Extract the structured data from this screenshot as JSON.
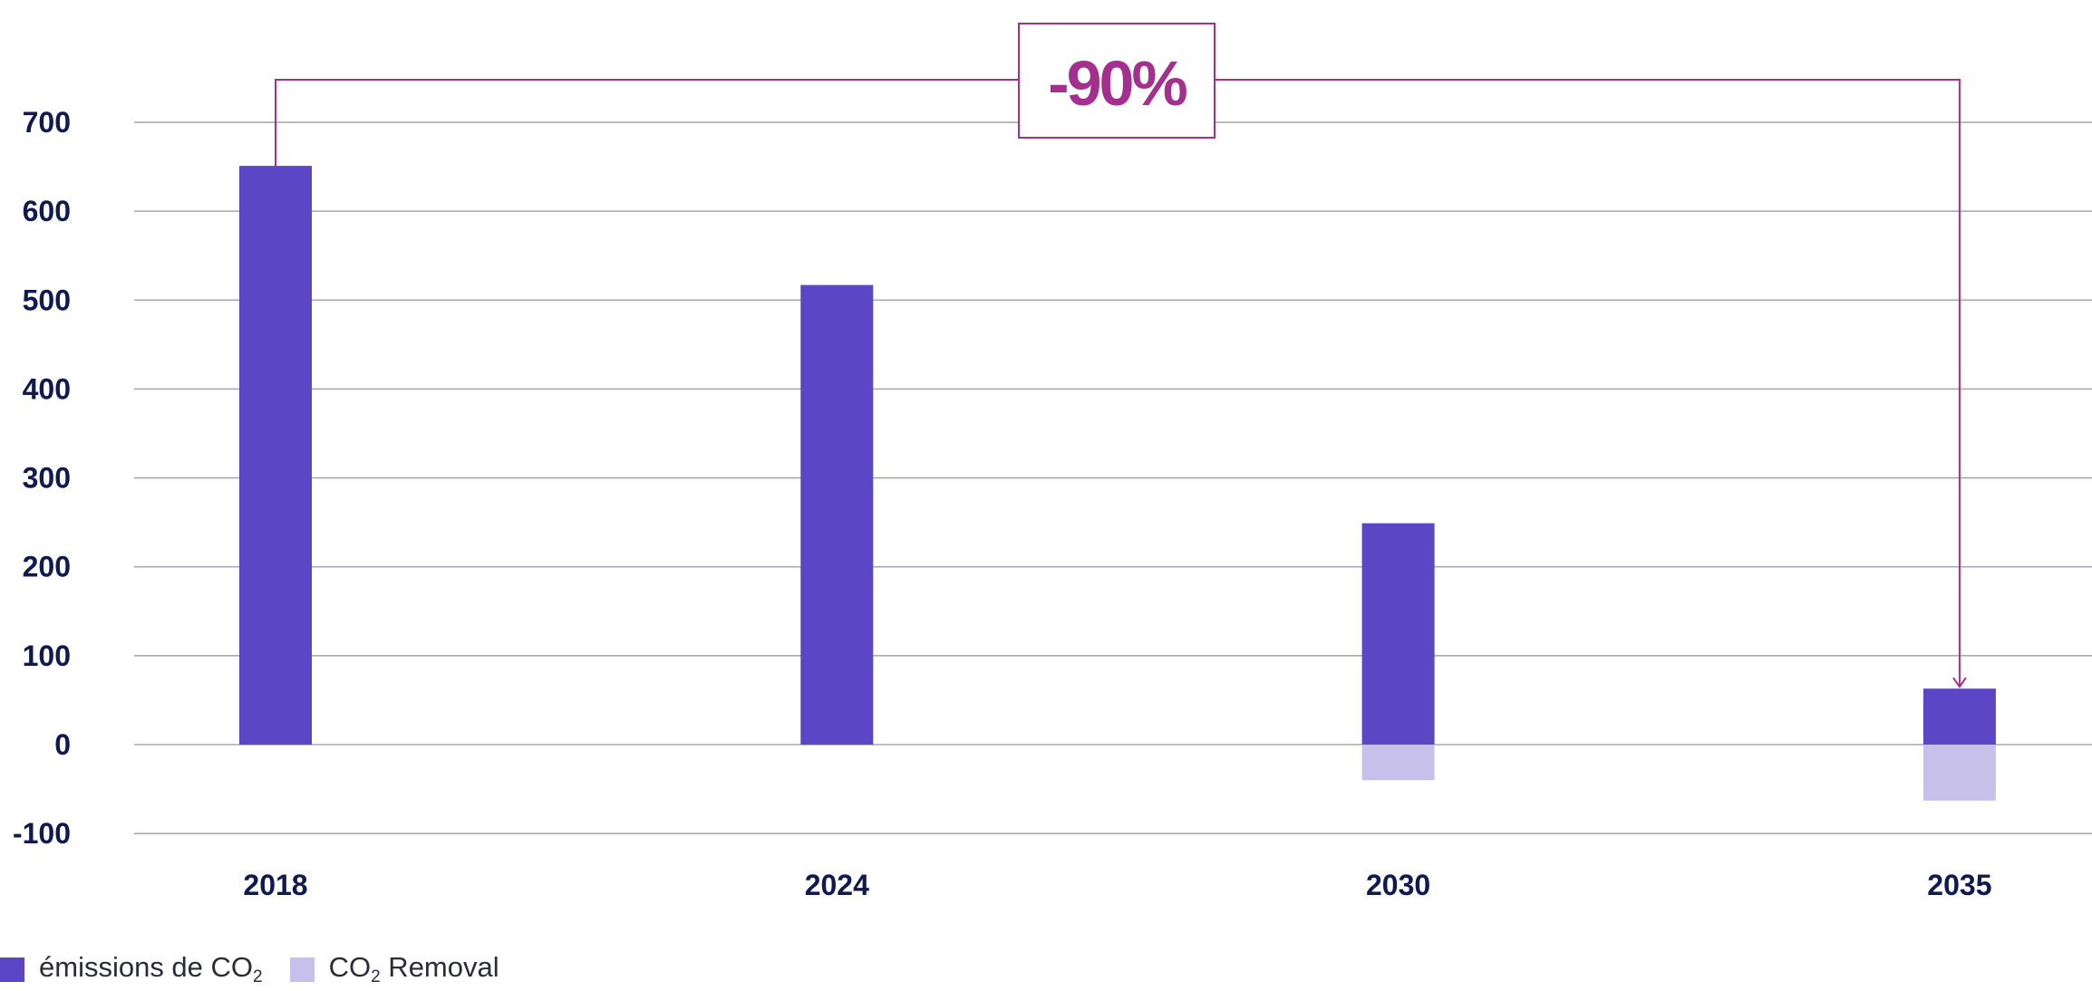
{
  "chart_data": {
    "type": "bar",
    "stacked": true,
    "categories": [
      "2018",
      "2024",
      "2030",
      "2035"
    ],
    "series": [
      {
        "name": "émissions de CO₂",
        "values": [
          651,
          517,
          249,
          63
        ],
        "color": "#5b47c6"
      },
      {
        "name": "CO₂ Removal",
        "values": [
          0,
          0,
          -40,
          -63
        ],
        "color": "#c7c0eb"
      }
    ],
    "ylim": [
      -100,
      700
    ],
    "yticks": [
      -100,
      0,
      100,
      200,
      300,
      400,
      500,
      600,
      700
    ],
    "grid": true,
    "legend_position": "bottom-left",
    "annotation": {
      "text": "-90%",
      "from_category": "2018",
      "to_category": "2035",
      "color": "#a3308f"
    },
    "xlabel": "",
    "ylabel": "",
    "title": ""
  },
  "legend": {
    "emissions": {
      "label": "émissions de CO",
      "sub": "2"
    },
    "removal": {
      "label_before": "CO",
      "sub": "2",
      "label_after": " Removal"
    }
  }
}
